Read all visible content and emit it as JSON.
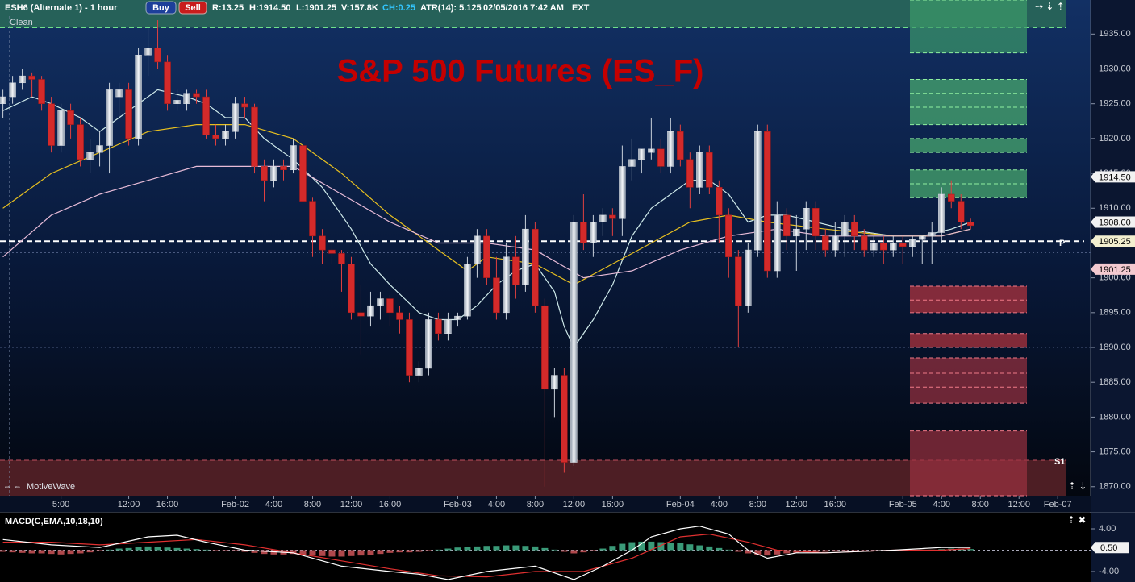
{
  "header": {
    "symbol": "ESH6 (Alternate 1) - 1 hour",
    "buy": "Buy",
    "sell": "Sell",
    "range": "R:13.25",
    "high": "H:1914.50",
    "low": "L:1901.25",
    "volume": "V:157.8K",
    "change": "CH:0.25",
    "atr": "ATR(14): 5.125",
    "timestamp": "02/05/2016 7:42 AM",
    "session": "EXT",
    "mode": "Clean",
    "watermark": "MotiveWave"
  },
  "chart_data": {
    "type": "candlestick",
    "title": "S&P 500 Futures (ES_F)",
    "x": [
      0,
      1,
      2,
      3,
      4,
      5,
      6,
      7,
      8,
      9,
      10,
      11,
      12,
      13,
      14,
      15,
      16,
      17,
      18,
      19,
      20,
      21,
      22,
      23,
      24,
      25,
      26,
      27,
      28,
      29,
      30,
      31,
      32,
      33,
      34,
      35,
      36,
      37,
      38,
      39,
      40,
      41,
      42,
      43,
      44,
      45,
      46,
      47,
      48,
      49,
      50,
      51,
      52,
      53,
      54,
      55,
      56,
      57,
      58,
      59,
      60,
      61,
      62,
      63,
      64,
      65,
      66,
      67,
      68,
      69,
      70,
      71,
      72,
      73,
      74,
      75,
      76,
      77,
      78,
      79,
      80,
      81,
      82,
      83,
      84,
      85,
      86,
      87,
      88,
      89,
      90,
      91,
      92,
      93,
      94,
      95,
      96,
      97,
      98,
      99,
      100
    ],
    "open": [
      1925,
      1926,
      1928,
      1929,
      1928.5,
      1925,
      1919,
      1924,
      1922,
      1917,
      1918,
      1919,
      1926,
      1927,
      1920,
      1932,
      1933,
      1931,
      1925,
      1925,
      1926.5,
      1926,
      1920.5,
      1920,
      1921,
      1925,
      1924.5,
      1916,
      1914,
      1916,
      1915.5,
      1919,
      1911,
      1906,
      1904,
      1903.5,
      1902,
      1895,
      1894.5,
      1896,
      1897,
      1895,
      1894,
      1886,
      1887,
      1894,
      1892,
      1894,
      1894.5,
      1902,
      1906,
      1900,
      1895,
      1903,
      1899,
      1907,
      1896,
      1884,
      1886,
      1873.5,
      1908,
      1905,
      1908,
      1909,
      1908.5,
      1916,
      1917,
      1918,
      1918.5,
      1916,
      1921,
      1917,
      1913,
      1918,
      1913,
      1909,
      1903,
      1896,
      1904,
      1921,
      1901,
      1909,
      1906,
      1907,
      1910,
      1906,
      1904,
      1906,
      1908,
      1906,
      1904,
      1905,
      1904,
      1905,
      1904.5,
      1905.5,
      1906,
      1906.5,
      1912,
      1911,
      1908
    ],
    "high": [
      1927,
      1929,
      1930,
      1929.5,
      1929,
      1926,
      1925,
      1925,
      1923,
      1920,
      1921,
      1928,
      1928,
      1928,
      1933,
      1936,
      1937,
      1932,
      1927,
      1927,
      1927,
      1927,
      1922,
      1922,
      1926,
      1926,
      1925,
      1917,
      1917,
      1917,
      1920,
      1920,
      1911.5,
      1907,
      1905,
      1904,
      1903,
      1899,
      1898,
      1898,
      1897.5,
      1896,
      1895,
      1888,
      1895,
      1895,
      1895,
      1895,
      1903,
      1907,
      1907,
      1903,
      1905,
      1906,
      1909,
      1908,
      1897,
      1887,
      1887,
      1909,
      1912,
      1909,
      1910,
      1910,
      1919,
      1920,
      1918,
      1923,
      1920,
      1923,
      1922,
      1918,
      1919,
      1919,
      1914,
      1910,
      1904,
      1905,
      1922,
      1922,
      1911,
      1910,
      1909,
      1911,
      1911,
      1907,
      1908,
      1909,
      1909,
      1907,
      1906,
      1906,
      1906,
      1906,
      1906,
      1906,
      1908,
      1913,
      1914,
      1912,
      1908.5
    ],
    "low": [
      1923,
      1925,
      1927,
      1926,
      1924,
      1918,
      1918,
      1920,
      1916,
      1915,
      1916,
      1915,
      1923,
      1919,
      1919,
      1929,
      1930,
      1924,
      1924,
      1924,
      1925,
      1920,
      1919,
      1919,
      1920,
      1923,
      1915,
      1911,
      1913,
      1914,
      1915,
      1910,
      1903,
      1902,
      1902,
      1898,
      1894,
      1889,
      1893,
      1894,
      1893,
      1892,
      1885,
      1885,
      1886,
      1891,
      1891,
      1893,
      1894,
      1900,
      1899,
      1894,
      1894,
      1897,
      1898,
      1895,
      1870,
      1880,
      1872,
      1873,
      1904,
      1903,
      1906,
      1906,
      1906,
      1914,
      1915,
      1917,
      1915,
      1915,
      1916,
      1910,
      1912,
      1912,
      1905,
      1900,
      1890,
      1895,
      1903,
      1900,
      1900,
      1904,
      1901,
      1904,
      1904,
      1903,
      1903,
      1903,
      1904,
      1903,
      1903,
      1902,
      1903,
      1902,
      1903,
      1902,
      1902,
      1905,
      1910,
      1907,
      1907
    ],
    "close": [
      1926,
      1928,
      1929,
      1928.5,
      1925,
      1919,
      1924,
      1922,
      1917,
      1918,
      1919,
      1927,
      1927,
      1920,
      1932,
      1933,
      1931,
      1925,
      1925.5,
      1926.5,
      1926,
      1920.5,
      1920,
      1921,
      1925,
      1924.5,
      1916,
      1914,
      1916,
      1915.5,
      1919,
      1911,
      1906,
      1904,
      1903.5,
      1902,
      1895,
      1894.5,
      1896,
      1897,
      1895,
      1894,
      1886,
      1887,
      1894,
      1892,
      1894,
      1894.5,
      1902,
      1906,
      1900,
      1895,
      1903,
      1899,
      1907,
      1896,
      1884,
      1886,
      1873.5,
      1908,
      1905,
      1908,
      1909,
      1908.5,
      1916,
      1917,
      1918.5,
      1918.5,
      1916,
      1921,
      1917,
      1913,
      1918,
      1913,
      1909,
      1903,
      1896,
      1904,
      1921,
      1901,
      1909,
      1906,
      1907,
      1910,
      1906,
      1904,
      1906,
      1908,
      1906,
      1904,
      1905,
      1904,
      1905,
      1904.5,
      1905.5,
      1906,
      1906.5,
      1912,
      1911,
      1908,
      1907.5
    ],
    "up_color": "#d6dbe2",
    "down_color": "#d42a2a",
    "xlim": [
      -0.3,
      112.4
    ],
    "xticks": [
      {
        "value": 6,
        "label": "5:00"
      },
      {
        "value": 13,
        "label": "12:00"
      },
      {
        "value": 17,
        "label": "16:00"
      },
      {
        "value": 24,
        "label": "Feb-02"
      },
      {
        "value": 28,
        "label": "4:00"
      },
      {
        "value": 32,
        "label": "8:00"
      },
      {
        "value": 36,
        "label": "12:00"
      },
      {
        "value": 40,
        "label": "16:00"
      },
      {
        "value": 47,
        "label": "Feb-03"
      },
      {
        "value": 51,
        "label": "4:00"
      },
      {
        "value": 55,
        "label": "8:00"
      },
      {
        "value": 59,
        "label": "12:00"
      },
      {
        "value": 63,
        "label": "16:00"
      },
      {
        "value": 70,
        "label": "Feb-04"
      },
      {
        "value": 74,
        "label": "4:00"
      },
      {
        "value": 78,
        "label": "8:00"
      },
      {
        "value": 82,
        "label": "12:00"
      },
      {
        "value": 86,
        "label": "16:00"
      },
      {
        "value": 93,
        "label": "Feb-05"
      },
      {
        "value": 97,
        "label": "4:00"
      },
      {
        "value": 101,
        "label": "8:00"
      },
      {
        "value": 105,
        "label": "12:00"
      },
      {
        "value": 109,
        "label": "Feb-07"
      }
    ],
    "ylim": [
      1868.7,
      1939.9
    ],
    "yticks": [
      {
        "value": 1870,
        "label": "1870.00"
      },
      {
        "value": 1875,
        "label": "1875.00"
      },
      {
        "value": 1880,
        "label": "1880.00"
      },
      {
        "value": 1885,
        "label": "1885.00"
      },
      {
        "value": 1890,
        "label": "1890.00"
      },
      {
        "value": 1895,
        "label": "1895.00"
      },
      {
        "value": 1900,
        "label": "1900.00"
      },
      {
        "value": 1905,
        "label": "1905.00"
      },
      {
        "value": 1910,
        "label": "1910.00"
      },
      {
        "value": 1915,
        "label": "1915.00"
      },
      {
        "value": 1920,
        "label": "1920.00"
      },
      {
        "value": 1925,
        "label": "1925.00"
      },
      {
        "value": 1930,
        "label": "1930.00"
      },
      {
        "value": 1935,
        "label": "1935.00"
      }
    ],
    "moving_averages": [
      {
        "color": "#cfeaea",
        "x": [
          0,
          3,
          5,
          8,
          10,
          12,
          14,
          16,
          19,
          21,
          23,
          25,
          27,
          29,
          30,
          33,
          36,
          38,
          40,
          43,
          45,
          47,
          49,
          51,
          53,
          55,
          57,
          58,
          59,
          61,
          63,
          65,
          67,
          69,
          71,
          73,
          75,
          77,
          79,
          81,
          84,
          87,
          92,
          95,
          98,
          100
        ],
        "values": [
          1924,
          1926,
          1925,
          1923,
          1921,
          1923,
          1925,
          1927,
          1926,
          1925,
          1923,
          1923,
          1920,
          1918,
          1917,
          1913,
          1907,
          1902,
          1899,
          1895,
          1894,
          1894,
          1896,
          1899,
          1901,
          1902,
          1898,
          1893,
          1890,
          1894,
          1899,
          1906,
          1910,
          1912,
          1914,
          1914,
          1912,
          1908,
          1909,
          1909,
          1908,
          1907,
          1906,
          1906,
          1907,
          1908
        ]
      },
      {
        "color": "#e8c020",
        "x": [
          0,
          5,
          10,
          15,
          20,
          25,
          30,
          35,
          40,
          45,
          48,
          50,
          55,
          59,
          63,
          67,
          71,
          75,
          79,
          85,
          92,
          97,
          100
        ],
        "values": [
          1910,
          1915,
          1918,
          1921,
          1922,
          1922,
          1920,
          1915,
          1909,
          1904,
          1901,
          1903,
          1902,
          1899,
          1902,
          1905,
          1908,
          1909,
          1908,
          1907,
          1906,
          1906,
          1907
        ]
      },
      {
        "color": "#e8bcd8",
        "x": [
          0,
          5,
          10,
          15,
          20,
          25,
          30,
          35,
          40,
          45,
          50,
          55,
          60,
          65,
          70,
          75,
          80,
          85,
          92,
          97,
          100
        ],
        "values": [
          1903,
          1909,
          1912,
          1914,
          1916,
          1916,
          1916,
          1912,
          1908,
          1905,
          1905,
          1904,
          1900,
          1901,
          1904,
          1906,
          1907,
          1906,
          1906,
          1906,
          1907
        ]
      }
    ],
    "price_markers": [
      {
        "value": 1914.5,
        "label": "1914.50",
        "color": "#f2f2f2"
      },
      {
        "value": 1908,
        "label": "1908.00",
        "color": "#f2f2f2"
      },
      {
        "value": 1905.25,
        "label": "1905.25",
        "color": "#f3efcf"
      },
      {
        "value": 1901.25,
        "label": "1901.25",
        "color": "#f3c9cf"
      }
    ],
    "pivot": {
      "value": 1905.25,
      "label": "P"
    },
    "support": {
      "value": 1873.8,
      "label": "S1"
    },
    "dotted_lines": [
      1930,
      1890,
      1903.6
    ],
    "bands": [
      {
        "low": 1935.9,
        "high": 1939.9,
        "color": "#2a6a58"
      },
      {
        "low": 1868.7,
        "high": 1873.8,
        "color": "#5a2228"
      }
    ],
    "zones": [
      {
        "color": "#3c9a6a",
        "levels": [
          1932.3,
          1939.9
        ]
      },
      {
        "color": "#4cb070",
        "levels": [
          1922,
          1924.5,
          1926.5,
          1928.5
        ]
      },
      {
        "color": "#4cb070",
        "levels": [
          1918,
          1920
        ]
      },
      {
        "color": "#4cb070",
        "levels": [
          1911.5,
          1913.5,
          1915.5
        ]
      },
      {
        "color": "#b8343e",
        "levels": [
          1895,
          1896.8,
          1898.8
        ]
      },
      {
        "color": "#b8343e",
        "levels": [
          1890,
          1892
        ]
      },
      {
        "color": "#9a3040",
        "levels": [
          1882,
          1884.3,
          1886.3,
          1888.5
        ]
      },
      {
        "color": "#9a3040",
        "levels": [
          1868.7,
          1878
        ]
      }
    ],
    "macd": {
      "label": "MACD(C,EMA,10,18,10)",
      "ylim": [
        -5.96,
        6.87
      ],
      "yticks": [
        {
          "value": 4,
          "label": "4.00"
        },
        {
          "value": -4,
          "label": "-4.00"
        }
      ],
      "marker": {
        "value": 0.5,
        "label": "0.50"
      },
      "histogram": [
        -0.3,
        -0.4,
        -0.5,
        -0.6,
        -0.6,
        -0.7,
        -0.8,
        -0.7,
        -0.6,
        -0.4,
        -0.2,
        0.1,
        0.3,
        0.4,
        0.6,
        0.7,
        0.6,
        0.5,
        0.4,
        0.3,
        0.2,
        0.1,
        -0.1,
        -0.2,
        -0.2,
        -0.3,
        -0.5,
        -0.7,
        -0.8,
        -0.8,
        -0.7,
        -0.9,
        -1.0,
        -1.1,
        -1.2,
        -1.2,
        -1.1,
        -1.0,
        -0.9,
        -0.7,
        -0.5,
        -0.4,
        -0.4,
        -0.3,
        -0.2,
        0.1,
        0.3,
        0.5,
        0.6,
        0.7,
        0.8,
        0.8,
        0.9,
        0.9,
        0.8,
        0.7,
        0.4,
        0.1,
        -0.3,
        -0.6,
        -0.4,
        -0.1,
        0.3,
        0.8,
        1.2,
        1.5,
        1.6,
        1.6,
        1.5,
        1.4,
        1.3,
        1.1,
        0.9,
        0.7,
        0.4,
        0.1,
        -0.3,
        -0.6,
        -0.9,
        -1.0,
        -0.8,
        -0.6,
        -0.5,
        -0.4,
        -0.3,
        -0.3,
        -0.2,
        -0.2,
        -0.1,
        -0.1,
        -0.1,
        -0.1,
        -0.1,
        0,
        0,
        0.1,
        0.1,
        0.2,
        0.3,
        0.3,
        0.2
      ],
      "positive_color": "#3a9a78",
      "negative_color": "#b0484c",
      "macd_line": {
        "color": "#ffffff",
        "x": [
          0,
          5,
          10,
          15,
          18,
          21,
          25,
          30,
          35,
          40,
          43,
          46,
          50,
          55,
          59,
          62,
          65,
          67,
          70,
          72,
          75,
          77,
          79,
          82,
          85,
          92,
          97,
          100
        ],
        "values": [
          2,
          1,
          0.5,
          2.5,
          2.8,
          1.5,
          0,
          -0.5,
          -3,
          -4,
          -4.5,
          -5.5,
          -4,
          -3,
          -5.5,
          -3,
          0,
          2.5,
          4,
          4.5,
          3,
          0,
          -1.5,
          -0.5,
          -0.5,
          0,
          0.5,
          0.5
        ]
      },
      "signal_line": {
        "color": "#e03030",
        "x": [
          0,
          5,
          10,
          15,
          20,
          25,
          30,
          35,
          40,
          45,
          50,
          55,
          60,
          65,
          70,
          73,
          77,
          80,
          85,
          92,
          97,
          100
        ],
        "values": [
          1.5,
          1.5,
          1,
          1.5,
          2,
          1,
          -0.5,
          -2,
          -3.5,
          -4.8,
          -5,
          -4,
          -4,
          -1.5,
          2.5,
          3,
          1.5,
          0,
          -0.5,
          0,
          0,
          0.3
        ]
      }
    }
  }
}
